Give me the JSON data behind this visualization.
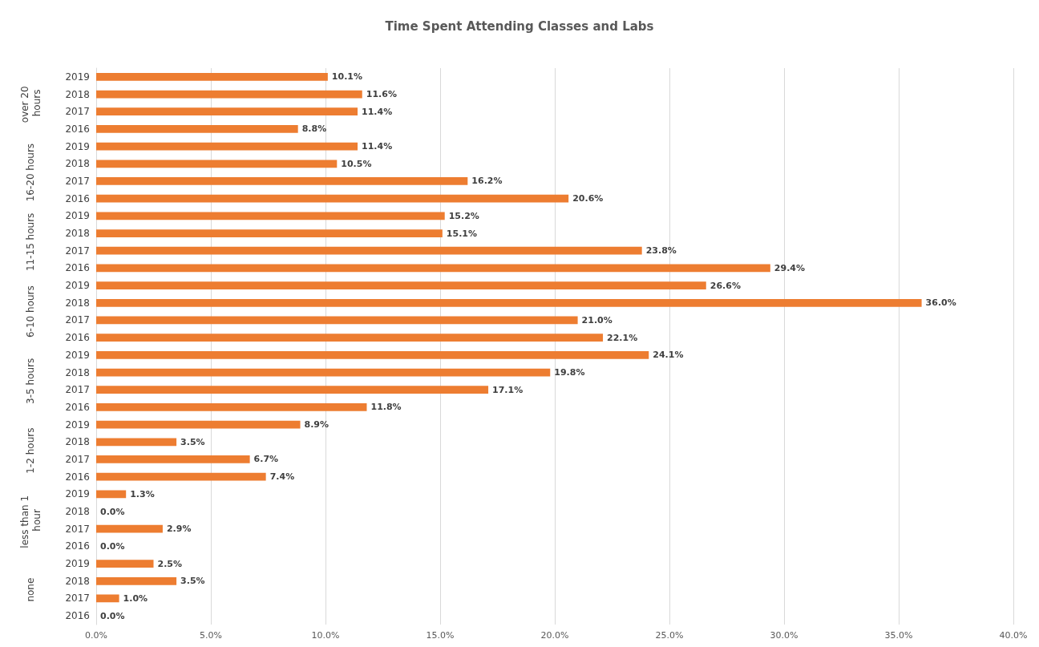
{
  "chart_data": {
    "type": "bar",
    "orientation": "horizontal",
    "title": "Time Spent Attending Classes and Labs",
    "categories": [
      "2019",
      "2018",
      "2017",
      "2016",
      "2019",
      "2018",
      "2017",
      "2016",
      "2019",
      "2018",
      "2017",
      "2016",
      "2019",
      "2018",
      "2017",
      "2016",
      "2019",
      "2018",
      "2017",
      "2016",
      "2019",
      "2018",
      "2017",
      "2016",
      "2019",
      "2018",
      "2017",
      "2016",
      "2019",
      "2018",
      "2017",
      "2016"
    ],
    "values": [
      10.1,
      11.6,
      11.4,
      8.8,
      11.4,
      10.5,
      16.2,
      20.6,
      15.2,
      15.1,
      23.8,
      29.4,
      26.6,
      36.0,
      21.0,
      22.1,
      24.1,
      19.8,
      17.1,
      11.8,
      8.9,
      3.5,
      6.7,
      7.4,
      1.3,
      0.0,
      2.9,
      0.0,
      2.5,
      3.5,
      1.0,
      0.0
    ],
    "value_labels": [
      "10.1%",
      "11.6%",
      "11.4%",
      "8.8%",
      "11.4%",
      "10.5%",
      "16.2%",
      "20.6%",
      "15.2%",
      "15.1%",
      "23.8%",
      "29.4%",
      "26.6%",
      "36.0%",
      "21.0%",
      "22.1%",
      "24.1%",
      "19.8%",
      "17.1%",
      "11.8%",
      "8.9%",
      "3.5%",
      "6.7%",
      "7.4%",
      "1.3%",
      "0.0%",
      "2.9%",
      "0.0%",
      "2.5%",
      "3.5%",
      "1.0%",
      "0.0%"
    ],
    "color": "#ed7d31",
    "xlim": [
      0,
      40
    ],
    "xticks": [
      {
        "value": 0,
        "label": "0.0%"
      },
      {
        "value": 5,
        "label": "5.0%"
      },
      {
        "value": 10,
        "label": "10.0%"
      },
      {
        "value": 15,
        "label": "15.0%"
      },
      {
        "value": 20,
        "label": "20.0%"
      },
      {
        "value": 25,
        "label": "25.0%"
      },
      {
        "value": 30,
        "label": "30.0%"
      },
      {
        "value": 35,
        "label": "35.0%"
      },
      {
        "value": 40,
        "label": "40.0%"
      }
    ],
    "annotations": [
      "over 20 hours",
      "16-20 hours",
      "11-15 hours",
      "6-10 hours",
      "3-5 hours",
      "1-2 hours",
      "less than 1 hour",
      "none"
    ],
    "grid": "x"
  }
}
